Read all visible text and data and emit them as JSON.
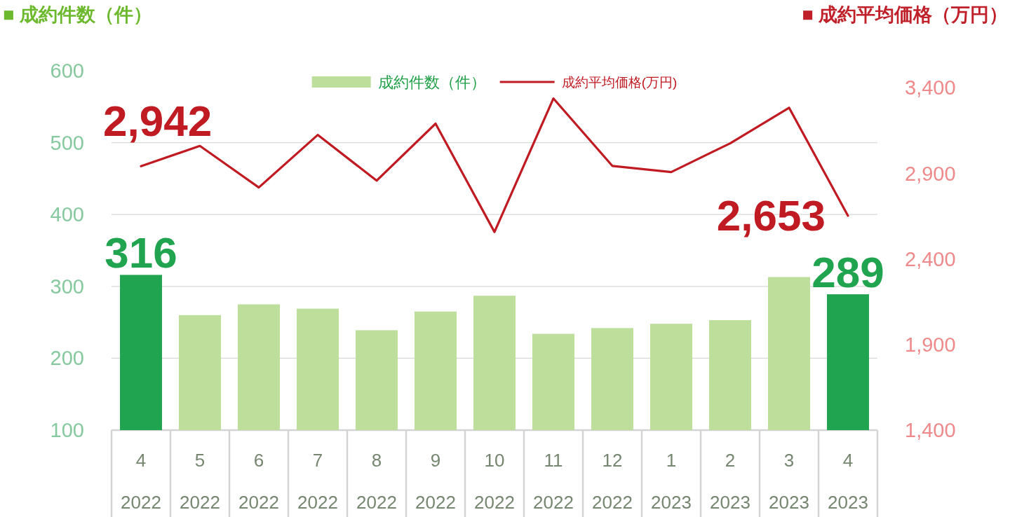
{
  "chart_data": {
    "type": "bar",
    "ylabel": "■ 成約件数（件）",
    "y2label": "■ 成約平均価格（万円）",
    "categories": [
      "4\n2022",
      "5\n2022",
      "6\n2022",
      "7\n2022",
      "8\n2022",
      "9\n2022",
      "10\n2022",
      "11\n2022",
      "12\n2022",
      "1\n2023",
      "2\n2023",
      "3\n2023",
      "4\n2023"
    ],
    "series": [
      {
        "name": "成約件数（件）",
        "color": "#bddf9b",
        "colors": [
          "#21a44f",
          "#bddf9b",
          "#bddf9b",
          "#bddf9b",
          "#bddf9b",
          "#bddf9b",
          "#bddf9b",
          "#bddf9b",
          "#bddf9b",
          "#bddf9b",
          "#bddf9b",
          "#bddf9b",
          "#21a44f"
        ],
        "values": [
          316,
          260,
          275,
          269,
          239,
          265,
          287,
          234,
          242,
          248,
          253,
          313,
          289
        ],
        "value_labels": [
          "316",
          null,
          null,
          null,
          null,
          null,
          null,
          null,
          null,
          null,
          null,
          null,
          "289"
        ]
      },
      {
        "name": "成約平均価格(万円)",
        "type": "line",
        "axis": "y2",
        "color": "#c01a22",
        "values": [
          2942,
          3061,
          2818,
          3125,
          2858,
          3191,
          2558,
          3338,
          2944,
          2908,
          3076,
          3284,
          2653
        ],
        "value_labels": [
          "2,942",
          null,
          null,
          null,
          null,
          null,
          null,
          null,
          null,
          null,
          null,
          null,
          "2,653"
        ]
      }
    ],
    "ylim": [
      100,
      600
    ],
    "yticks": [
      100,
      200,
      300,
      400,
      500,
      600
    ],
    "y2lim": [
      1400,
      3500
    ],
    "y2ticks": [
      {
        "value": 1400,
        "label": "1,400"
      },
      {
        "value": 1900,
        "label": "1,900"
      },
      {
        "value": 2400,
        "label": "2,400"
      },
      {
        "value": 2900,
        "label": "2,900"
      },
      {
        "value": 3400,
        "label": "3,400"
      }
    ],
    "grid": "y",
    "legend": "top"
  }
}
